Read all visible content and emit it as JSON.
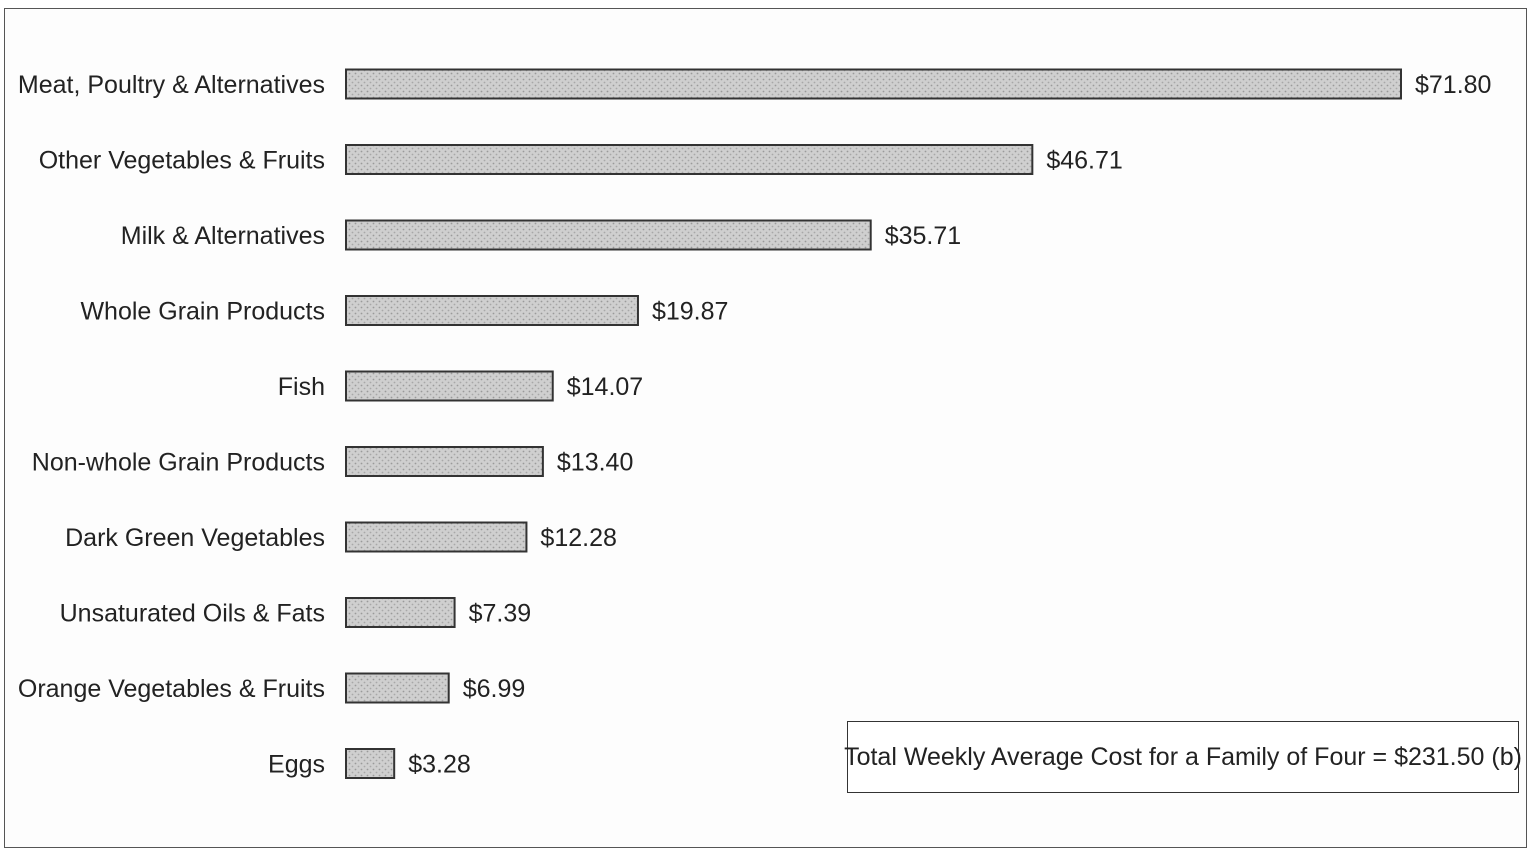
{
  "chart_data": {
    "type": "bar",
    "orientation": "horizontal",
    "categories": [
      "Meat, Poultry & Alternatives",
      "Other Vegetables & Fruits",
      "Milk & Alternatives",
      "Whole Grain Products",
      "Fish",
      "Non-whole Grain Products",
      "Dark Green Vegetables",
      "Unsaturated Oils & Fats",
      "Orange Vegetables & Fruits",
      "Eggs"
    ],
    "values": [
      71.8,
      46.71,
      35.71,
      19.87,
      14.07,
      13.4,
      12.28,
      7.39,
      6.99,
      3.28
    ],
    "value_labels": [
      "$71.80",
      "$46.71",
      "$35.71",
      "$19.87",
      "$14.07",
      "$13.40",
      "$12.28",
      "$7.39",
      "$6.99",
      "$3.28"
    ],
    "title": "",
    "xlabel": "",
    "ylabel": "",
    "xlim": [
      0,
      71.8
    ],
    "grid": false,
    "bar_color": "#c8c8c8",
    "bar_edge_color": "#333333"
  },
  "annotation": {
    "total_text": "Total Weekly Average Cost for a Family of Four = $231.50 (b)"
  }
}
